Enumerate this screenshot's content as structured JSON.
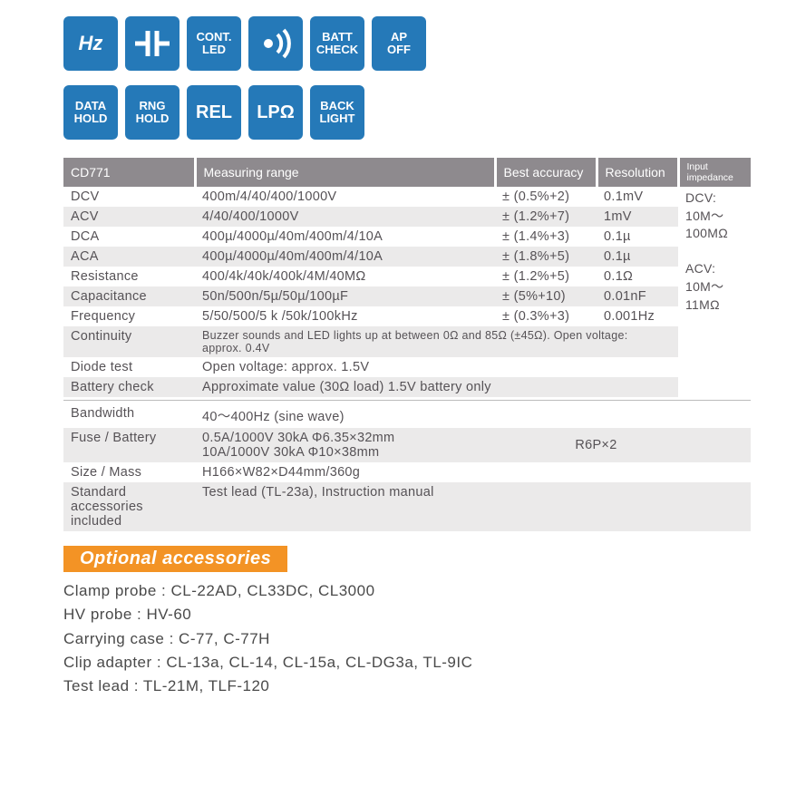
{
  "icons": {
    "row1": [
      {
        "type": "hz",
        "label": "Hz"
      },
      {
        "type": "cap"
      },
      {
        "type": "contled",
        "line1": "CONT.",
        "line2": "LED"
      },
      {
        "type": "sound"
      },
      {
        "type": "batt",
        "line1": "BATT",
        "line2": "CHECK"
      },
      {
        "type": "apoff",
        "line1": "AP",
        "line2": "OFF"
      }
    ],
    "row2": [
      {
        "type": "data",
        "line1": "DATA",
        "line2": "HOLD"
      },
      {
        "type": "rng",
        "line1": "RNG",
        "line2": "HOLD"
      },
      {
        "type": "rel",
        "label": "REL"
      },
      {
        "type": "lpohm",
        "label": "LPΩ"
      },
      {
        "type": "back",
        "line1": "BACK",
        "line2": "LIGHT"
      }
    ]
  },
  "headers": [
    "CD771",
    "Measuring range",
    "Best accuracy",
    "Resolution",
    "Input impedance"
  ],
  "specRows": [
    {
      "c": [
        "DCV",
        "400m/4/40/400/1000V",
        "± (0.5%+2)",
        "0.1mV"
      ],
      "alt": false
    },
    {
      "c": [
        "ACV",
        "4/40/400/1000V",
        "± (1.2%+7)",
        "1mV"
      ],
      "alt": true
    },
    {
      "c": [
        "DCA",
        "400µ/4000µ/40m/400m/4/10A",
        "± (1.4%+3)",
        "0.1µ"
      ],
      "alt": false
    },
    {
      "c": [
        "ACA",
        "400µ/4000µ/40m/400m/4/10A",
        "± (1.8%+5)",
        "0.1µ"
      ],
      "alt": true
    },
    {
      "c": [
        "Resistance",
        "400/4k/40k/400k/4M/40MΩ",
        "± (1.2%+5)",
        "0.1Ω"
      ],
      "alt": false
    },
    {
      "c": [
        "Capacitance",
        "50n/500n/5µ/50µ/100µF",
        "± (5%+10)",
        "0.01nF"
      ],
      "alt": true
    },
    {
      "c": [
        "Frequency",
        "5/50/500/5 k /50k/100kHz",
        "± (0.3%+3)",
        "0.001Hz"
      ],
      "alt": false
    }
  ],
  "impedance": "DCV:\n10M～\n100MΩ\n\nACV:\n10M～\n11MΩ",
  "noteRows": [
    {
      "c": [
        "Continuity",
        "Buzzer sounds and LED lights up at between 0Ω and 85Ω (±45Ω).  Open voltage: approx. 0.4V"
      ],
      "alt": true,
      "note": true
    },
    {
      "c": [
        "Diode test",
        "Open voltage: approx. 1.5V"
      ],
      "alt": false
    },
    {
      "c": [
        "Battery check",
        "Approximate value (30Ω load) 1.5V battery only"
      ],
      "alt": true
    }
  ],
  "lowerRows": [
    {
      "c": [
        "Bandwidth",
        "40～400Hz (sine wave)",
        "",
        ""
      ],
      "alt": false,
      "span": true
    },
    {
      "c": [
        "Fuse / Battery",
        "0.5A/1000V 30kA Φ6.35×32mm\n10A/1000V 30kA Φ10×38mm",
        "R6P×2"
      ],
      "alt": true,
      "fuse": true
    },
    {
      "c": [
        "Size / Mass",
        "H166×W82×D44mm/360g"
      ],
      "alt": false
    },
    {
      "c": [
        "Standard accessories included",
        "Test lead (TL-23a), Instruction manual"
      ],
      "alt": true
    }
  ],
  "optHeader": "Optional accessories",
  "optList": [
    "Clamp probe : CL-22AD, CL33DC, CL3000",
    "HV probe : HV-60",
    "Carrying case : C-77, C-77H",
    "Clip adapter : CL-13a, CL-14, CL-15a, CL-DG3a, TL-9IC",
    "Test lead : TL-21M, TLF-120"
  ],
  "colors": {
    "iconBg": "#2579b8",
    "headerBg": "#8e8a8e",
    "altRow": "#ebeaea",
    "optBg": "#f39325"
  }
}
